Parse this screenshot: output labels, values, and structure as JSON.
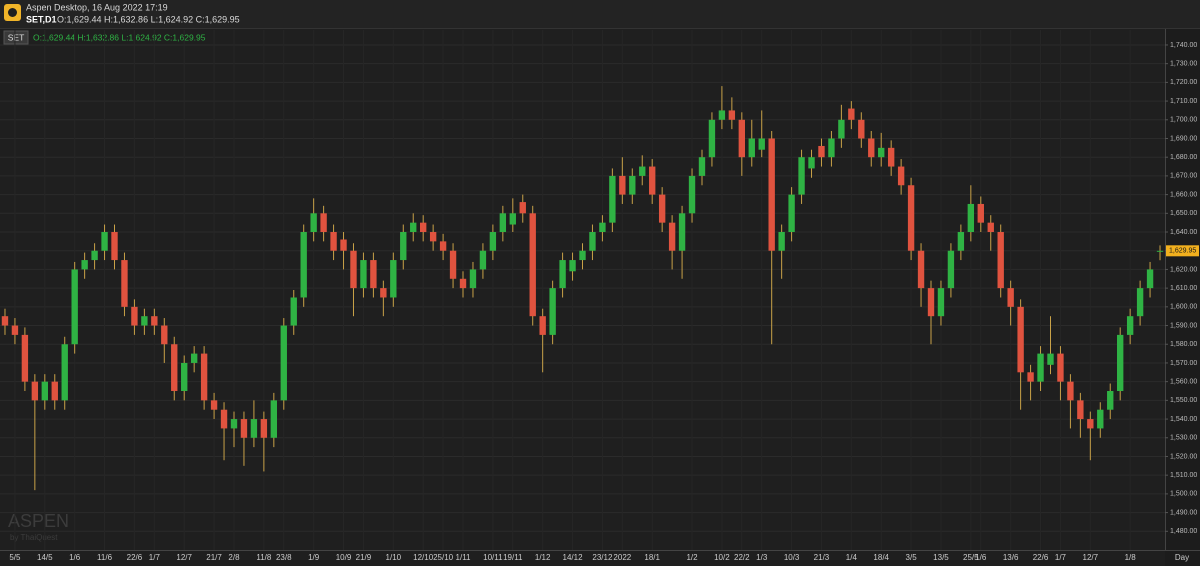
{
  "window_title": "Aspen Desktop, 16 Aug 2022 17:19",
  "header": {
    "symbol": "SET,D1",
    "ohlc": "O:1,629.44 H:1,632.86 L:1,624.92 C:1,629.95"
  },
  "watermark": {
    "brand": "ASPEN",
    "by": "by ThaiQuest"
  },
  "chart_data": {
    "type": "candlestick",
    "series_label": "SET",
    "ohlc_text": "O:1,629.44 H:1,632.86 L:1,624.92 C:1,629.95",
    "x_unit_label": "Day",
    "up_color": "#2fb344",
    "down_color": "#e0533f",
    "wick_color": "#c9a248",
    "grid": true,
    "ylim": [
      1470,
      1748
    ],
    "yticks": [
      {
        "value": 1480,
        "label": "1,480.00"
      },
      {
        "value": 1490,
        "label": "1,490.00"
      },
      {
        "value": 1500,
        "label": "1,500.00"
      },
      {
        "value": 1510,
        "label": "1,510.00"
      },
      {
        "value": 1520,
        "label": "1,520.00"
      },
      {
        "value": 1530,
        "label": "1,530.00"
      },
      {
        "value": 1540,
        "label": "1,540.00"
      },
      {
        "value": 1550,
        "label": "1,550.00"
      },
      {
        "value": 1560,
        "label": "1,560.00"
      },
      {
        "value": 1570,
        "label": "1,570.00"
      },
      {
        "value": 1580,
        "label": "1,580.00"
      },
      {
        "value": 1590,
        "label": "1,590.00"
      },
      {
        "value": 1600,
        "label": "1,600.00"
      },
      {
        "value": 1610,
        "label": "1,610.00"
      },
      {
        "value": 1620,
        "label": "1,620.00"
      },
      {
        "value": 1630,
        "label": "1,630.00"
      },
      {
        "value": 1640,
        "label": "1,640.00"
      },
      {
        "value": 1650,
        "label": "1,650.00"
      },
      {
        "value": 1660,
        "label": "1,660.00"
      },
      {
        "value": 1670,
        "label": "1,670.00"
      },
      {
        "value": 1680,
        "label": "1,680.00"
      },
      {
        "value": 1690,
        "label": "1,690.00"
      },
      {
        "value": 1700,
        "label": "1,700.00"
      },
      {
        "value": 1710,
        "label": "1,710.00"
      },
      {
        "value": 1720,
        "label": "1,720.00"
      },
      {
        "value": 1730,
        "label": "1,730.00"
      },
      {
        "value": 1740,
        "label": "1,740.00"
      }
    ],
    "last_price": {
      "value": 1629.95,
      "label": "1,629.95"
    },
    "categories": [
      null,
      "5/5",
      null,
      null,
      "14/5",
      null,
      null,
      "1/6",
      null,
      null,
      "11/6",
      null,
      null,
      "22/6",
      null,
      "1/7",
      null,
      null,
      "12/7",
      null,
      null,
      "21/7",
      null,
      "2/8",
      null,
      null,
      "11/8",
      null,
      "23/8",
      null,
      null,
      "1/9",
      null,
      null,
      "10/9",
      null,
      "21/9",
      null,
      null,
      "1/10",
      null,
      null,
      "12/10",
      null,
      "25/10",
      null,
      "1/11",
      null,
      null,
      "10/11",
      null,
      "19/11",
      null,
      null,
      "1/12",
      null,
      null,
      "14/12",
      null,
      null,
      "23/12",
      null,
      "2022",
      null,
      null,
      "18/1",
      null,
      null,
      null,
      "1/2",
      null,
      null,
      "10/2",
      null,
      "22/2",
      null,
      "1/3",
      null,
      null,
      "10/3",
      null,
      null,
      "21/3",
      null,
      null,
      "1/4",
      null,
      null,
      "18/4",
      null,
      null,
      "3/5",
      null,
      null,
      "13/5",
      null,
      null,
      "25/5",
      "1/6",
      null,
      null,
      "13/6",
      null,
      null,
      "22/6",
      null,
      "1/7",
      null,
      null,
      "12/7",
      null,
      null,
      null,
      "1/8",
      null,
      null,
      null
    ],
    "open": [
      1595,
      1590,
      1585,
      1560,
      1550,
      1560,
      1550,
      1580,
      1620,
      1625,
      1630,
      1640,
      1625,
      1600,
      1590,
      1595,
      1590,
      1580,
      1555,
      1570,
      1575,
      1550,
      1545,
      1535,
      1540,
      1530,
      1540,
      1530,
      1550,
      1590,
      1605,
      1640,
      1650,
      1640,
      1636,
      1630,
      1610,
      1625,
      1610,
      1605,
      1625,
      1640,
      1645,
      1640,
      1635,
      1630,
      1615,
      1610,
      1620,
      1630,
      1640,
      1644,
      1656,
      1650,
      1595,
      1585,
      1610,
      1619,
      1625,
      1630,
      1640,
      1645,
      1670,
      1660,
      1670,
      1675,
      1660,
      1645,
      1630,
      1650,
      1670,
      1680,
      1700,
      1705,
      1700,
      1680,
      1684,
      1690,
      1630,
      1640,
      1660,
      1674,
      1686,
      1680,
      1690,
      1706,
      1700,
      1690,
      1680,
      1685,
      1675,
      1665,
      1630,
      1610,
      1595,
      1610,
      1630,
      1640,
      1655,
      1645,
      1640,
      1610,
      1600,
      1565,
      1560,
      1569,
      1575,
      1560,
      1550,
      1540,
      1535,
      1545,
      1555,
      1585,
      1595,
      1610,
      1629.44
    ],
    "high": [
      1599,
      1594,
      1589,
      1564,
      1564,
      1564,
      1584,
      1624,
      1629,
      1634,
      1644,
      1644,
      1629,
      1604,
      1599,
      1599,
      1594,
      1584,
      1574,
      1579,
      1579,
      1554,
      1549,
      1544,
      1544,
      1550,
      1544,
      1554,
      1594,
      1609,
      1644,
      1658,
      1654,
      1644,
      1640,
      1634,
      1629,
      1629,
      1614,
      1629,
      1644,
      1650,
      1649,
      1644,
      1639,
      1634,
      1619,
      1624,
      1634,
      1644,
      1654,
      1658,
      1660,
      1654,
      1599,
      1614,
      1629,
      1629,
      1634,
      1644,
      1649,
      1674,
      1680,
      1674,
      1681,
      1679,
      1664,
      1649,
      1654,
      1674,
      1684,
      1704,
      1718,
      1712,
      1704,
      1700,
      1705,
      1694,
      1644,
      1664,
      1684,
      1684,
      1690,
      1694,
      1708,
      1710,
      1704,
      1694,
      1693,
      1689,
      1679,
      1669,
      1634,
      1614,
      1614,
      1634,
      1644,
      1665,
      1659,
      1649,
      1644,
      1614,
      1604,
      1569,
      1579,
      1595,
      1579,
      1564,
      1554,
      1544,
      1549,
      1559,
      1589,
      1599,
      1614,
      1624,
      1632.86
    ],
    "low": [
      1585,
      1580,
      1555,
      1502,
      1545,
      1545,
      1545,
      1575,
      1615,
      1620,
      1625,
      1620,
      1595,
      1585,
      1585,
      1585,
      1570,
      1550,
      1550,
      1565,
      1545,
      1540,
      1518,
      1525,
      1515,
      1525,
      1512,
      1525,
      1545,
      1585,
      1600,
      1635,
      1635,
      1625,
      1620,
      1595,
      1605,
      1605,
      1595,
      1600,
      1620,
      1635,
      1635,
      1630,
      1625,
      1610,
      1605,
      1605,
      1615,
      1625,
      1635,
      1640,
      1645,
      1590,
      1565,
      1580,
      1605,
      1614,
      1620,
      1625,
      1635,
      1640,
      1655,
      1655,
      1665,
      1655,
      1640,
      1620,
      1615,
      1645,
      1665,
      1675,
      1695,
      1695,
      1670,
      1675,
      1680,
      1580,
      1615,
      1635,
      1655,
      1669,
      1675,
      1675,
      1685,
      1695,
      1685,
      1675,
      1675,
      1670,
      1660,
      1625,
      1600,
      1580,
      1590,
      1605,
      1625,
      1635,
      1640,
      1630,
      1605,
      1590,
      1545,
      1550,
      1555,
      1564,
      1550,
      1535,
      1530,
      1518,
      1530,
      1540,
      1550,
      1580,
      1590,
      1605,
      1624.92
    ],
    "close": [
      1590,
      1585,
      1560,
      1550,
      1560,
      1550,
      1580,
      1620,
      1625,
      1630,
      1640,
      1625,
      1600,
      1590,
      1595,
      1590,
      1580,
      1555,
      1570,
      1575,
      1550,
      1545,
      1535,
      1540,
      1530,
      1540,
      1530,
      1550,
      1590,
      1605,
      1640,
      1650,
      1640,
      1630,
      1630,
      1610,
      1625,
      1610,
      1605,
      1625,
      1640,
      1645,
      1640,
      1635,
      1630,
      1615,
      1610,
      1620,
      1630,
      1640,
      1650,
      1650,
      1650,
      1595,
      1585,
      1610,
      1625,
      1625,
      1630,
      1640,
      1645,
      1670,
      1660,
      1670,
      1675,
      1660,
      1645,
      1630,
      1650,
      1670,
      1680,
      1700,
      1705,
      1700,
      1680,
      1690,
      1690,
      1630,
      1640,
      1660,
      1680,
      1680,
      1680,
      1690,
      1700,
      1700,
      1690,
      1680,
      1685,
      1675,
      1665,
      1630,
      1610,
      1595,
      1610,
      1630,
      1640,
      1655,
      1645,
      1640,
      1610,
      1600,
      1565,
      1560,
      1575,
      1575,
      1560,
      1550,
      1540,
      1535,
      1545,
      1555,
      1585,
      1595,
      1610,
      1620,
      1629.95
    ]
  }
}
